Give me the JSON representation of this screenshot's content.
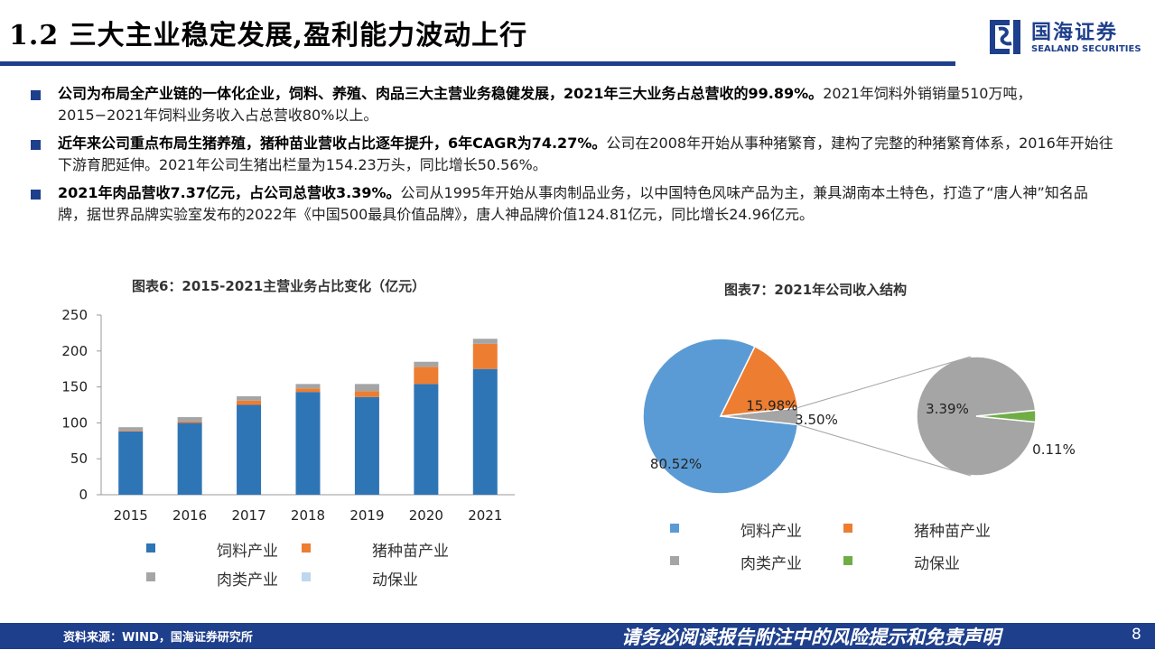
{
  "header": {
    "title": "1.2 三大主业稳定发展,盈利能力波动上行",
    "logo_name": "国海证券",
    "logo_en": "SEALAND SECURITIES"
  },
  "bullets": [
    {
      "bold": "公司为布局全产业链的一体化企业，饲料、养殖、肉品三大主营业务稳健发展，2021年三大业务占总营收的99.89%。",
      "text": "2021年饲料外销销量510万吨，2015−2021年饲料业务收入占总营收80%以上。"
    },
    {
      "bold": "近年来公司重点布局生猪养殖，猪种苗业营收占比逐年提升，6年CAGR为74.27%。",
      "text": "公司在2008年开始从事种猪繁育，建构了完整的种猪繁育体系，2016年开始往下游育肥延伸。2021年公司生猪出栏量为154.23万头，同比增长50.56%。"
    },
    {
      "bold": "2021年肉品营收7.37亿元，占公司总营收3.39%。",
      "text": "公司从1995年开始从事肉制品业务，以中国特色风味产品为主，兼具湖南本土特色，打造了“唐人神”知名品牌，据世界品牌实验室发布的2022年《中国500最具价值品牌》，唐人神品牌价值124.81亿元，同比增长24.96亿元。"
    }
  ],
  "colors": {
    "brand": "#1e3f8c",
    "feed": "#2e75b6",
    "pig": "#ed7d31",
    "meat": "#a5a5a5",
    "animal": "#bdd7ee",
    "pie_feed": "#5b9bd5",
    "pie_pig": "#ed7d31",
    "pie_meat": "#a5a5a5",
    "pie_animal": "#70ad47"
  },
  "chart_data": [
    {
      "type": "bar",
      "stacked": true,
      "title": "图表6：2015-2021主营业务占比变化（亿元）",
      "categories": [
        "2015",
        "2016",
        "2017",
        "2018",
        "2019",
        "2020",
        "2021"
      ],
      "series": [
        {
          "name": "饲料产业",
          "values": [
            88,
            100,
            125,
            143,
            136,
            154,
            175
          ]
        },
        {
          "name": "猪种苗产业",
          "values": [
            1,
            2,
            6,
            5,
            8,
            24,
            35
          ]
        },
        {
          "name": "肉类产业",
          "values": [
            5,
            6,
            6,
            6,
            10,
            7,
            7
          ]
        },
        {
          "name": "动保业",
          "values": [
            0.2,
            0.2,
            0.2,
            0.2,
            0.2,
            0.2,
            0.2
          ]
        }
      ],
      "ylim": [
        0,
        250
      ],
      "yticks": [
        "0",
        "50",
        "100",
        "150",
        "200",
        "250"
      ],
      "legend": "bottom"
    },
    {
      "type": "pie",
      "title": "图表7：2021年公司收入结构",
      "slices": [
        {
          "name": "饲料产业",
          "value": 80.52,
          "label": "80.52%"
        },
        {
          "name": "猪种苗产业",
          "value": 15.98,
          "label": "15.98%"
        },
        {
          "name": "",
          "value": 3.5,
          "label": "3.50%"
        }
      ],
      "breakout": [
        {
          "name": "肉类产业",
          "value": 3.39,
          "label": "3.39%"
        },
        {
          "name": "动保业",
          "value": 0.11,
          "label": "0.11%"
        }
      ],
      "legend": "bottom"
    }
  ],
  "legend": {
    "bar": [
      "饲料产业",
      "猪种苗产业",
      "肉类产业",
      "动保业"
    ],
    "pie": [
      "饲料产业",
      "猪种苗产业",
      "肉类产业",
      "动保业"
    ]
  },
  "footer": {
    "source": "资料来源：WIND，国海证券研究所",
    "disclaimer": "请务必阅读报告附注中的风险提示和免责声明",
    "page": "8"
  }
}
